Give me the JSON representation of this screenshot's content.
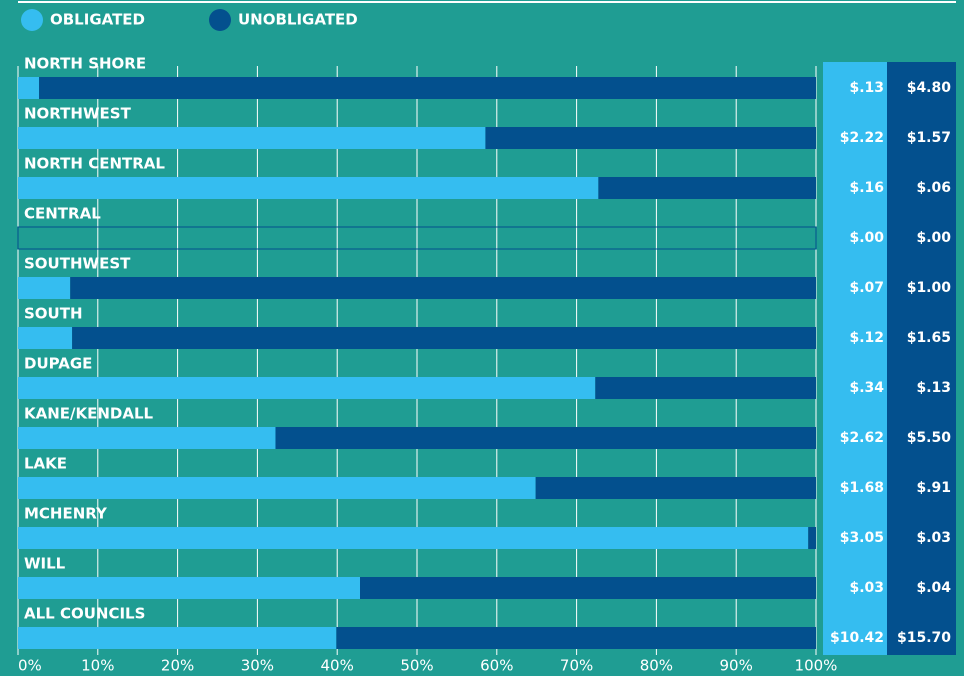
{
  "chart_data": {
    "type": "bar",
    "orientation": "horizontal",
    "stack": "percent",
    "categories": [
      "NORTH SHORE",
      "NORTHWEST",
      "NORTH CENTRAL",
      "CENTRAL",
      "SOUTHWEST",
      "SOUTH",
      "DUPAGE",
      "KANE/KENDALL",
      "LAKE",
      "MCHENRY",
      "WILL",
      "ALL COUNCILS"
    ],
    "series": [
      {
        "name": "OBLIGATED",
        "color": "#35bdf0",
        "values": [
          0.13,
          2.22,
          0.16,
          0,
          0.07,
          0.12,
          0.34,
          2.62,
          1.68,
          3.05,
          0.03,
          10.42
        ],
        "value_labels": [
          "$.13",
          "$2.22",
          "$.16",
          "$.00",
          "$.07",
          "$.12",
          "$.34",
          "$2.62",
          "$1.68",
          "$3.05",
          "$.03",
          "$10.42"
        ]
      },
      {
        "name": "UNOBLIGATED",
        "color": "#03508e",
        "values": [
          4.8,
          1.57,
          0.06,
          0,
          1.0,
          1.65,
          0.13,
          5.5,
          0.91,
          0.03,
          0.04,
          15.7
        ],
        "value_labels": [
          "$4.80",
          "$1.57",
          "$.06",
          "$.00",
          "$1.00",
          "$1.65",
          "$.13",
          "$5.50",
          "$.91",
          "$.03",
          "$.04",
          "$15.70"
        ]
      }
    ],
    "xlim": [
      0,
      100
    ],
    "xticks": [
      {
        "value": 0,
        "label": "0%"
      },
      {
        "value": 10,
        "label": "10%"
      },
      {
        "value": 20,
        "label": "20%"
      },
      {
        "value": 30,
        "label": "30%"
      },
      {
        "value": 40,
        "label": "40%"
      },
      {
        "value": 50,
        "label": "50%"
      },
      {
        "value": 60,
        "label": "60%"
      },
      {
        "value": 70,
        "label": "70%"
      },
      {
        "value": 80,
        "label": "80%"
      },
      {
        "value": 90,
        "label": "90%"
      },
      {
        "value": 100,
        "label": "100%"
      }
    ],
    "grid": true
  }
}
